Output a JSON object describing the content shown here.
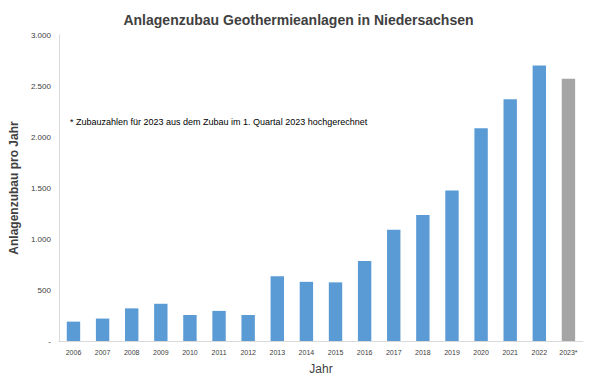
{
  "chart_data": {
    "type": "bar",
    "title": "Anlagenzubau Geothermieanlagen in Niedersachsen",
    "x_label": "Jahr",
    "y_label": "Anlagenzubau pro Jahr",
    "annotation": "* Zubauzahlen für 2023 aus dem Zubau im 1. Quartal 2023 hochgerechnet",
    "categories": [
      "2006",
      "2007",
      "2008",
      "2009",
      "2010",
      "2011",
      "2012",
      "2013",
      "2014",
      "2015",
      "2016",
      "2017",
      "2018",
      "2019",
      "2020",
      "2021",
      "2022",
      "2023*"
    ],
    "values": [
      190,
      220,
      320,
      365,
      255,
      295,
      255,
      635,
      580,
      575,
      785,
      1090,
      1235,
      1475,
      2085,
      2370,
      2700,
      2570
    ],
    "colors": [
      "#5b9bd5",
      "#5b9bd5",
      "#5b9bd5",
      "#5b9bd5",
      "#5b9bd5",
      "#5b9bd5",
      "#5b9bd5",
      "#5b9bd5",
      "#5b9bd5",
      "#5b9bd5",
      "#5b9bd5",
      "#5b9bd5",
      "#5b9bd5",
      "#5b9bd5",
      "#5b9bd5",
      "#5b9bd5",
      "#5b9bd5",
      "#a5a5a5"
    ],
    "ylim": [
      0,
      3000
    ],
    "yticks": [
      {
        "value": 0,
        "label": "-"
      },
      500,
      {
        "value": 1000,
        "label": "1.000"
      },
      {
        "value": 1500,
        "label": "1.500"
      },
      {
        "value": 2000,
        "label": "2.000"
      },
      {
        "value": 2500,
        "label": "2.500"
      },
      {
        "value": 3000,
        "label": "3.000"
      }
    ],
    "grid": false
  }
}
